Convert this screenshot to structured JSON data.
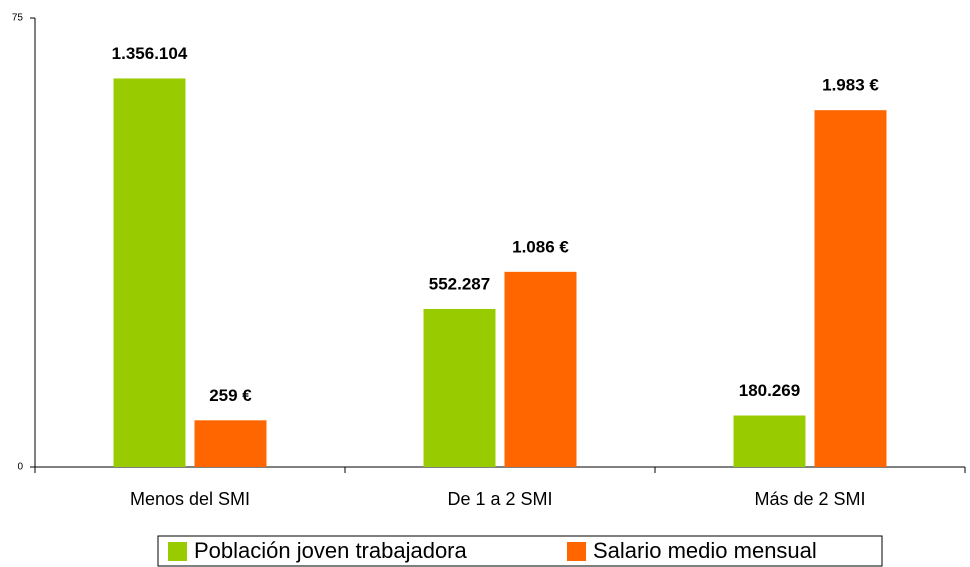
{
  "chart_data": {
    "type": "bar",
    "categories": [
      "Menos del SMI",
      "De 1 a 2 SMI",
      "Más de 2 SMI"
    ],
    "series": [
      {
        "name": "Población joven trabajadora",
        "color": "#99cc00",
        "values": [
          64.9,
          26.4,
          8.6
        ],
        "data_labels": [
          "1.356.104",
          "552.287",
          "180.269"
        ]
      },
      {
        "name": "Salario medio mensual",
        "color": "#ff6600",
        "values": [
          7.8,
          32.6,
          59.6
        ],
        "data_labels": [
          "259 €",
          "1.086 €",
          "1.983 €"
        ]
      }
    ],
    "ylim": [
      0,
      75
    ],
    "yticks": [
      0,
      75
    ],
    "grid": false,
    "legend": "bottom"
  }
}
